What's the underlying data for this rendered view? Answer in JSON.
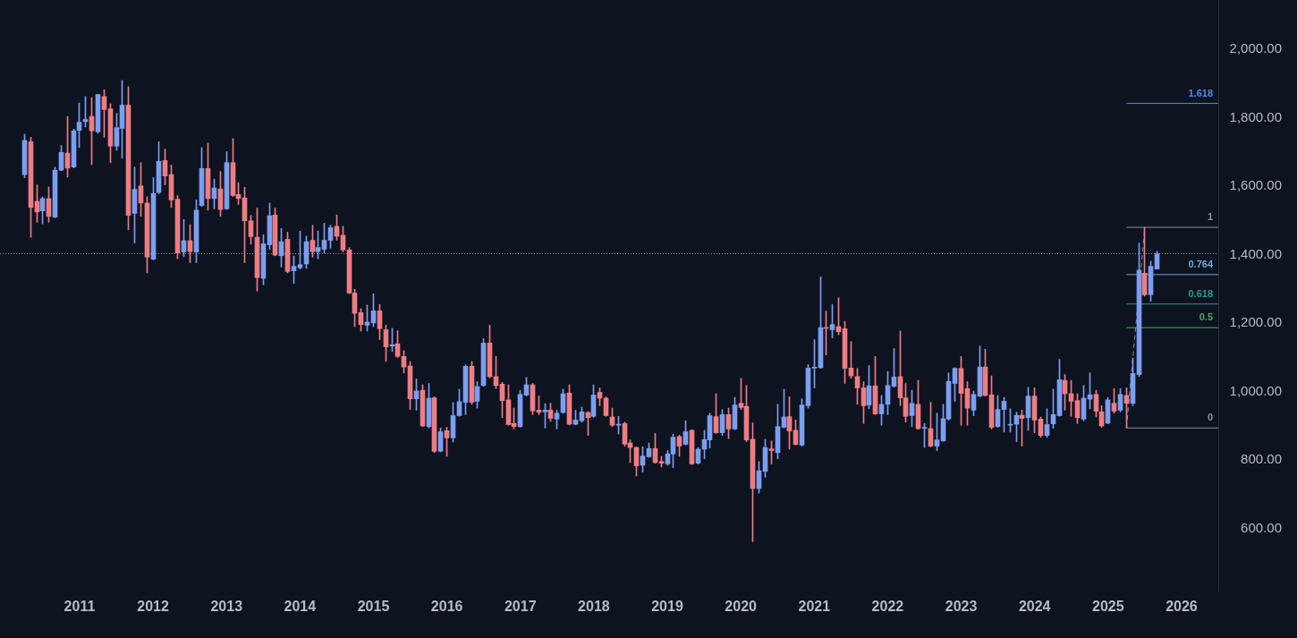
{
  "chart_data": {
    "type": "candlestick",
    "x": [
      "2010-04",
      "2010-05",
      "2010-06",
      "2010-07",
      "2010-08",
      "2010-09",
      "2010-10",
      "2010-11",
      "2010-12",
      "2011-01",
      "2011-02",
      "2011-03",
      "2011-04",
      "2011-05",
      "2011-06",
      "2011-07",
      "2011-08",
      "2011-09",
      "2011-10",
      "2011-11",
      "2011-12",
      "2012-01",
      "2012-02",
      "2012-03",
      "2012-04",
      "2012-05",
      "2012-06",
      "2012-07",
      "2012-08",
      "2012-09",
      "2012-10",
      "2012-11",
      "2012-12",
      "2013-01",
      "2013-02",
      "2013-03",
      "2013-04",
      "2013-05",
      "2013-06",
      "2013-07",
      "2013-08",
      "2013-09",
      "2013-10",
      "2013-11",
      "2013-12",
      "2014-01",
      "2014-02",
      "2014-03",
      "2014-04",
      "2014-05",
      "2014-06",
      "2014-07",
      "2014-08",
      "2014-09",
      "2014-10",
      "2014-11",
      "2014-12",
      "2015-01",
      "2015-02",
      "2015-03",
      "2015-04",
      "2015-05",
      "2015-06",
      "2015-07",
      "2015-08",
      "2015-09",
      "2015-10",
      "2015-11",
      "2015-12",
      "2016-01",
      "2016-02",
      "2016-03",
      "2016-04",
      "2016-05",
      "2016-06",
      "2016-07",
      "2016-08",
      "2016-09",
      "2016-10",
      "2016-11",
      "2016-12",
      "2017-01",
      "2017-02",
      "2017-03",
      "2017-04",
      "2017-05",
      "2017-06",
      "2017-07",
      "2017-08",
      "2017-09",
      "2017-10",
      "2017-11",
      "2017-12",
      "2018-01",
      "2018-02",
      "2018-03",
      "2018-04",
      "2018-05",
      "2018-06",
      "2018-07",
      "2018-08",
      "2018-09",
      "2018-10",
      "2018-11",
      "2018-12",
      "2019-01",
      "2019-02",
      "2019-03",
      "2019-04",
      "2019-05",
      "2019-06",
      "2019-07",
      "2019-08",
      "2019-09",
      "2019-10",
      "2019-11",
      "2019-12",
      "2020-01",
      "2020-02",
      "2020-03",
      "2020-04",
      "2020-05",
      "2020-06",
      "2020-07",
      "2020-08",
      "2020-09",
      "2020-10",
      "2020-11",
      "2020-12",
      "2021-01",
      "2021-02",
      "2021-03",
      "2021-04",
      "2021-05",
      "2021-06",
      "2021-07",
      "2021-08",
      "2021-09",
      "2021-10",
      "2021-11",
      "2021-12",
      "2022-01",
      "2022-02",
      "2022-03",
      "2022-04",
      "2022-05",
      "2022-06",
      "2022-07",
      "2022-08",
      "2022-09",
      "2022-10",
      "2022-11",
      "2022-12",
      "2023-01",
      "2023-02",
      "2023-03",
      "2023-04",
      "2023-05",
      "2023-06",
      "2023-07",
      "2023-08",
      "2023-09",
      "2023-10",
      "2023-11",
      "2023-12",
      "2024-01",
      "2024-02",
      "2024-03",
      "2024-04",
      "2024-05",
      "2024-06",
      "2024-07",
      "2024-08",
      "2024-09",
      "2024-10",
      "2024-11",
      "2024-12",
      "2025-01",
      "2025-02",
      "2025-03",
      "2025-04",
      "2025-05",
      "2025-06",
      "2025-07",
      "2025-08",
      "2025-09"
    ],
    "ohlc": [
      [
        1634,
        1752,
        1625,
        1734
      ],
      [
        1730,
        1743,
        1451,
        1538
      ],
      [
        1556,
        1604,
        1495,
        1525
      ],
      [
        1528,
        1569,
        1490,
        1564
      ],
      [
        1564,
        1598,
        1495,
        1512
      ],
      [
        1510,
        1656,
        1508,
        1647
      ],
      [
        1647,
        1719,
        1645,
        1699
      ],
      [
        1697,
        1804,
        1627,
        1653
      ],
      [
        1656,
        1767,
        1654,
        1762
      ],
      [
        1763,
        1843,
        1713,
        1787
      ],
      [
        1789,
        1862,
        1773,
        1795
      ],
      [
        1804,
        1859,
        1663,
        1762
      ],
      [
        1759,
        1869,
        1755,
        1868
      ],
      [
        1862,
        1882,
        1743,
        1824
      ],
      [
        1826,
        1841,
        1669,
        1717
      ],
      [
        1717,
        1813,
        1705,
        1771
      ],
      [
        1769,
        1909,
        1682,
        1837
      ],
      [
        1837,
        1891,
        1473,
        1515
      ],
      [
        1521,
        1656,
        1434,
        1591
      ],
      [
        1601,
        1669,
        1512,
        1551
      ],
      [
        1551,
        1569,
        1347,
        1393
      ],
      [
        1387,
        1625,
        1385,
        1579
      ],
      [
        1582,
        1730,
        1578,
        1673
      ],
      [
        1675,
        1708,
        1604,
        1630
      ],
      [
        1634,
        1662,
        1538,
        1560
      ],
      [
        1562,
        1573,
        1388,
        1405
      ],
      [
        1408,
        1503,
        1394,
        1441
      ],
      [
        1441,
        1488,
        1377,
        1409
      ],
      [
        1408,
        1560,
        1377,
        1530
      ],
      [
        1544,
        1713,
        1541,
        1652
      ],
      [
        1652,
        1726,
        1530,
        1564
      ],
      [
        1564,
        1621,
        1534,
        1595
      ],
      [
        1592,
        1643,
        1512,
        1532
      ],
      [
        1534,
        1701,
        1532,
        1669
      ],
      [
        1669,
        1739,
        1570,
        1573
      ],
      [
        1576,
        1611,
        1547,
        1564
      ],
      [
        1566,
        1597,
        1377,
        1499
      ],
      [
        1499,
        1515,
        1431,
        1453
      ],
      [
        1451,
        1536,
        1294,
        1333
      ],
      [
        1331,
        1458,
        1312,
        1432
      ],
      [
        1429,
        1551,
        1416,
        1514
      ],
      [
        1516,
        1536,
        1397,
        1399
      ],
      [
        1397,
        1477,
        1364,
        1438
      ],
      [
        1445,
        1466,
        1347,
        1351
      ],
      [
        1353,
        1396,
        1316,
        1366
      ],
      [
        1362,
        1469,
        1358,
        1371
      ],
      [
        1373,
        1454,
        1360,
        1438
      ],
      [
        1442,
        1486,
        1393,
        1409
      ],
      [
        1409,
        1469,
        1388,
        1421
      ],
      [
        1416,
        1492,
        1405,
        1442
      ],
      [
        1442,
        1486,
        1419,
        1479
      ],
      [
        1483,
        1516,
        1442,
        1454
      ],
      [
        1457,
        1483,
        1408,
        1414
      ],
      [
        1414,
        1421,
        1286,
        1288
      ],
      [
        1288,
        1299,
        1190,
        1229
      ],
      [
        1231,
        1242,
        1177,
        1196
      ],
      [
        1194,
        1253,
        1177,
        1203
      ],
      [
        1201,
        1286,
        1190,
        1236
      ],
      [
        1236,
        1255,
        1152,
        1184
      ],
      [
        1181,
        1194,
        1088,
        1131
      ],
      [
        1133,
        1185,
        1117,
        1137
      ],
      [
        1140,
        1178,
        1100,
        1103
      ],
      [
        1103,
        1120,
        1055,
        1072
      ],
      [
        1075,
        1088,
        948,
        979
      ],
      [
        979,
        1037,
        946,
        1002
      ],
      [
        1004,
        1020,
        898,
        900
      ],
      [
        898,
        1024,
        894,
        981
      ],
      [
        982,
        985,
        822,
        826
      ],
      [
        826,
        894,
        824,
        883
      ],
      [
        886,
        896,
        811,
        865
      ],
      [
        865,
        968,
        853,
        930
      ],
      [
        930,
        1007,
        928,
        971
      ],
      [
        969,
        1078,
        933,
        1074
      ],
      [
        1074,
        1088,
        963,
        969
      ],
      [
        972,
        1029,
        952,
        1015
      ],
      [
        1018,
        1155,
        1016,
        1142
      ],
      [
        1142,
        1194,
        1040,
        1044
      ],
      [
        1044,
        1103,
        1009,
        1018
      ],
      [
        1022,
        1027,
        924,
        974
      ],
      [
        976,
        1020,
        902,
        904
      ],
      [
        907,
        952,
        891,
        898
      ],
      [
        898,
        1004,
        896,
        992
      ],
      [
        990,
        1042,
        987,
        1020
      ],
      [
        1020,
        1024,
        933,
        944
      ],
      [
        946,
        987,
        933,
        940
      ],
      [
        941,
        965,
        894,
        946
      ],
      [
        946,
        966,
        913,
        922
      ],
      [
        920,
        946,
        891,
        937
      ],
      [
        939,
        1007,
        937,
        994
      ],
      [
        996,
        1020,
        903,
        905
      ],
      [
        905,
        946,
        903,
        917
      ],
      [
        915,
        955,
        911,
        941
      ],
      [
        939,
        942,
        872,
        924
      ],
      [
        928,
        1020,
        925,
        990
      ],
      [
        998,
        1011,
        959,
        981
      ],
      [
        981,
        985,
        928,
        930
      ],
      [
        926,
        952,
        898,
        902
      ],
      [
        902,
        928,
        876,
        905
      ],
      [
        907,
        911,
        841,
        847
      ],
      [
        850,
        859,
        793,
        837
      ],
      [
        837,
        839,
        754,
        783
      ],
      [
        785,
        839,
        765,
        812
      ],
      [
        810,
        850,
        808,
        834
      ],
      [
        834,
        878,
        791,
        793
      ],
      [
        796,
        811,
        780,
        791
      ],
      [
        789,
        828,
        785,
        818
      ],
      [
        818,
        876,
        778,
        867
      ],
      [
        869,
        873,
        811,
        841
      ],
      [
        846,
        915,
        844,
        883
      ],
      [
        887,
        889,
        787,
        789
      ],
      [
        791,
        837,
        789,
        832
      ],
      [
        832,
        887,
        804,
        860
      ],
      [
        859,
        937,
        835,
        930
      ],
      [
        927,
        994,
        878,
        880
      ],
      [
        880,
        948,
        872,
        933
      ],
      [
        933,
        952,
        863,
        891
      ],
      [
        891,
        983,
        889,
        961
      ],
      [
        966,
        1039,
        948,
        954
      ],
      [
        957,
        1018,
        854,
        859
      ],
      [
        861,
        909,
        562,
        717
      ],
      [
        717,
        796,
        704,
        769
      ],
      [
        767,
        861,
        750,
        837
      ],
      [
        833,
        856,
        789,
        828
      ],
      [
        822,
        963,
        804,
        898
      ],
      [
        896,
        1007,
        894,
        926
      ],
      [
        927,
        985,
        832,
        885
      ],
      [
        887,
        917,
        844,
        846
      ],
      [
        844,
        979,
        841,
        961
      ],
      [
        959,
        1079,
        952,
        1069
      ],
      [
        1069,
        1152,
        1011,
        1071
      ],
      [
        1070,
        1335,
        1068,
        1187
      ],
      [
        1187,
        1235,
        1107,
        1185
      ],
      [
        1181,
        1255,
        1157,
        1196
      ],
      [
        1190,
        1274,
        1166,
        1175
      ],
      [
        1184,
        1205,
        1024,
        1068
      ],
      [
        1069,
        1146,
        1039,
        1046
      ],
      [
        1044,
        1068,
        963,
        1011
      ],
      [
        1011,
        1029,
        907,
        959
      ],
      [
        961,
        1076,
        950,
        1017
      ],
      [
        1017,
        1103,
        933,
        935
      ],
      [
        935,
        989,
        902,
        963
      ],
      [
        963,
        1059,
        933,
        1018
      ],
      [
        1016,
        1126,
        1013,
        1043
      ],
      [
        1044,
        1177,
        959,
        982
      ],
      [
        982,
        1024,
        911,
        928
      ],
      [
        930,
        1004,
        898,
        966
      ],
      [
        963,
        1033,
        890,
        892
      ],
      [
        893,
        907,
        837,
        894
      ],
      [
        892,
        969,
        839,
        841
      ],
      [
        841,
        937,
        828,
        859
      ],
      [
        856,
        963,
        855,
        921
      ],
      [
        920,
        1055,
        917,
        1030
      ],
      [
        1024,
        1070,
        972,
        1068
      ],
      [
        1068,
        1103,
        902,
        995
      ],
      [
        1009,
        1029,
        902,
        952
      ],
      [
        946,
        1002,
        930,
        992
      ],
      [
        987,
        1133,
        985,
        1072
      ],
      [
        1072,
        1124,
        987,
        989
      ],
      [
        991,
        1046,
        891,
        896
      ],
      [
        898,
        989,
        896,
        948
      ],
      [
        948,
        983,
        882,
        972
      ],
      [
        902,
        950,
        882,
        904
      ],
      [
        905,
        940,
        854,
        931
      ],
      [
        931,
        946,
        841,
        922
      ],
      [
        924,
        1013,
        887,
        987
      ],
      [
        987,
        1011,
        880,
        917
      ],
      [
        920,
        926,
        867,
        872
      ],
      [
        872,
        950,
        867,
        904
      ],
      [
        906,
        1007,
        893,
        933
      ],
      [
        930,
        1094,
        928,
        1035
      ],
      [
        1033,
        1050,
        946,
        994
      ],
      [
        994,
        1033,
        928,
        972
      ],
      [
        974,
        994,
        907,
        924
      ],
      [
        920,
        1018,
        915,
        981
      ],
      [
        978,
        1055,
        950,
        991
      ],
      [
        992,
        1004,
        926,
        943
      ],
      [
        941,
        959,
        896,
        900
      ],
      [
        908,
        983,
        906,
        976
      ],
      [
        966,
        1009,
        937,
        943
      ],
      [
        946,
        1009,
        941,
        992
      ],
      [
        989,
        1011,
        894,
        966
      ],
      [
        966,
        1098,
        959,
        1053
      ],
      [
        1050,
        1434,
        1044,
        1355
      ],
      [
        1346,
        1480,
        1279,
        1283
      ],
      [
        1283,
        1381,
        1264,
        1366
      ],
      [
        1358,
        1410,
        1358,
        1403
      ]
    ],
    "colors": [
      "#7b9ef0",
      "#ee7d82",
      "#ee7d82",
      "#7b9ef0",
      "#ee7d82",
      "#7b9ef0",
      "#7b9ef0",
      "#ee7d82",
      "#7b9ef0",
      "#7b9ef0",
      "#7b9ef0",
      "#ee7d82",
      "#7b9ef0",
      "#ee7d82",
      "#ee7d82",
      "#7b9ef0",
      "#7b9ef0",
      "#ee7d82",
      "#7b9ef0",
      "#ee7d82",
      "#ee7d82",
      "#7b9ef0",
      "#7b9ef0",
      "#ee7d82",
      "#ee7d82",
      "#ee7d82",
      "#7b9ef0",
      "#ee7d82",
      "#7b9ef0",
      "#7b9ef0",
      "#ee7d82",
      "#7b9ef0",
      "#ee7d82",
      "#7b9ef0",
      "#ee7d82",
      "#ee7d82",
      "#ee7d82",
      "#ee7d82",
      "#ee7d82",
      "#7b9ef0",
      "#7b9ef0",
      "#ee7d82",
      "#7b9ef0",
      "#ee7d82",
      "#7b9ef0",
      "#7b9ef0",
      "#7b9ef0",
      "#ee7d82",
      "#7b9ef0",
      "#7b9ef0",
      "#7b9ef0",
      "#ee7d82",
      "#ee7d82",
      "#ee7d82",
      "#ee7d82",
      "#ee7d82",
      "#7b9ef0",
      "#7b9ef0",
      "#ee7d82",
      "#ee7d82",
      "#7b9ef0",
      "#ee7d82",
      "#ee7d82",
      "#ee7d82",
      "#7b9ef0",
      "#ee7d82",
      "#7b9ef0",
      "#ee7d82",
      "#7b9ef0",
      "#ee7d82",
      "#7b9ef0",
      "#7b9ef0",
      "#7b9ef0",
      "#ee7d82",
      "#7b9ef0",
      "#7b9ef0",
      "#ee7d82",
      "#ee7d82",
      "#ee7d82",
      "#ee7d82",
      "#ee7d82",
      "#7b9ef0",
      "#7b9ef0",
      "#ee7d82",
      "#ee7d82",
      "#7b9ef0",
      "#ee7d82",
      "#7b9ef0",
      "#7b9ef0",
      "#ee7d82",
      "#7b9ef0",
      "#7b9ef0",
      "#ee7d82",
      "#7b9ef0",
      "#ee7d82",
      "#ee7d82",
      "#ee7d82",
      "#7b9ef0",
      "#ee7d82",
      "#ee7d82",
      "#ee7d82",
      "#7b9ef0",
      "#7b9ef0",
      "#ee7d82",
      "#ee7d82",
      "#7b9ef0",
      "#7b9ef0",
      "#ee7d82",
      "#7b9ef0",
      "#ee7d82",
      "#7b9ef0",
      "#7b9ef0",
      "#7b9ef0",
      "#ee7d82",
      "#7b9ef0",
      "#ee7d82",
      "#7b9ef0",
      "#ee7d82",
      "#ee7d82",
      "#ee7d82",
      "#7b9ef0",
      "#7b9ef0",
      "#ee7d82",
      "#7b9ef0",
      "#7b9ef0",
      "#ee7d82",
      "#ee7d82",
      "#7b9ef0",
      "#7b9ef0",
      "#7b9ef0",
      "#7b9ef0",
      "#ee7d82",
      "#7b9ef0",
      "#ee7d82",
      "#ee7d82",
      "#ee7d82",
      "#ee7d82",
      "#ee7d82",
      "#7b9ef0",
      "#ee7d82",
      "#7b9ef0",
      "#7b9ef0",
      "#7b9ef0",
      "#ee7d82",
      "#ee7d82",
      "#7b9ef0",
      "#ee7d82",
      "#7b9ef0",
      "#ee7d82",
      "#7b9ef0",
      "#7b9ef0",
      "#7b9ef0",
      "#7b9ef0",
      "#ee7d82",
      "#ee7d82",
      "#7b9ef0",
      "#7b9ef0",
      "#ee7d82",
      "#ee7d82",
      "#7b9ef0",
      "#7b9ef0",
      "#7b9ef0",
      "#7b9ef0",
      "#ee7d82",
      "#7b9ef0",
      "#ee7d82",
      "#ee7d82",
      "#7b9ef0",
      "#7b9ef0",
      "#7b9ef0",
      "#ee7d82",
      "#ee7d82",
      "#ee7d82",
      "#7b9ef0",
      "#7b9ef0",
      "#ee7d82",
      "#ee7d82",
      "#7b9ef0",
      "#ee7d82",
      "#7b9ef0",
      "#ee7d82",
      "#7b9ef0",
      "#7b9ef0",
      "#ee7d82",
      "#7b9ef0",
      "#7b9ef0"
    ],
    "series": [
      {
        "type": "line",
        "name": "1.618",
        "color": "#4a90e2",
        "x": [
          "2025-04",
          "2026-07"
        ],
        "values": [
          1842,
          1842
        ]
      },
      {
        "type": "line",
        "name": "1",
        "color": "#8d919c",
        "x": [
          "2025-04",
          "2026-07"
        ],
        "values": [
          1480,
          1480
        ]
      },
      {
        "type": "line",
        "name": "0.764",
        "color": "#6fa8dc",
        "x": [
          "2025-04",
          "2026-07"
        ],
        "values": [
          1342,
          1342
        ]
      },
      {
        "type": "line",
        "name": "0.618",
        "color": "#2a9d8f",
        "x": [
          "2025-04",
          "2026-07"
        ],
        "values": [
          1256,
          1256
        ]
      },
      {
        "type": "line",
        "name": "0.5",
        "color": "#4caf50",
        "x": [
          "2025-04",
          "2026-07"
        ],
        "values": [
          1187,
          1187
        ]
      },
      {
        "type": "line",
        "name": "0",
        "color": "#8d919c",
        "x": [
          "2025-04",
          "2026-07"
        ],
        "values": [
          894,
          894
        ]
      },
      {
        "type": "line",
        "color": "#8d919c",
        "line_style": "dashed",
        "x": [
          "2025-04",
          "2025-07"
        ],
        "values": [
          894,
          1480
        ]
      }
    ],
    "ref_lines": [
      {
        "axis": "y",
        "value": 1403,
        "color": "#8a8e99",
        "line_style": "dotted"
      }
    ],
    "xlim": [
      "2009-12",
      "2026-07"
    ],
    "xticks": [
      "2011",
      "2012",
      "2013",
      "2014",
      "2015",
      "2016",
      "2017",
      "2018",
      "2019",
      "2020",
      "2021",
      "2022",
      "2023",
      "2024",
      "2025",
      "2026"
    ],
    "ylim": [
      419,
      2144
    ],
    "yticks": [
      {
        "value": 600,
        "label": "600.00"
      },
      {
        "value": 800,
        "label": "800.00"
      },
      {
        "value": 1000,
        "label": "1,000.00"
      },
      {
        "value": 1200,
        "label": "1,200.00"
      },
      {
        "value": 1400,
        "label": "1,400.00"
      },
      {
        "value": 1600,
        "label": "1,600.00"
      },
      {
        "value": 1800,
        "label": "1,800.00"
      },
      {
        "value": 2000,
        "label": "2,000.00"
      }
    ]
  }
}
